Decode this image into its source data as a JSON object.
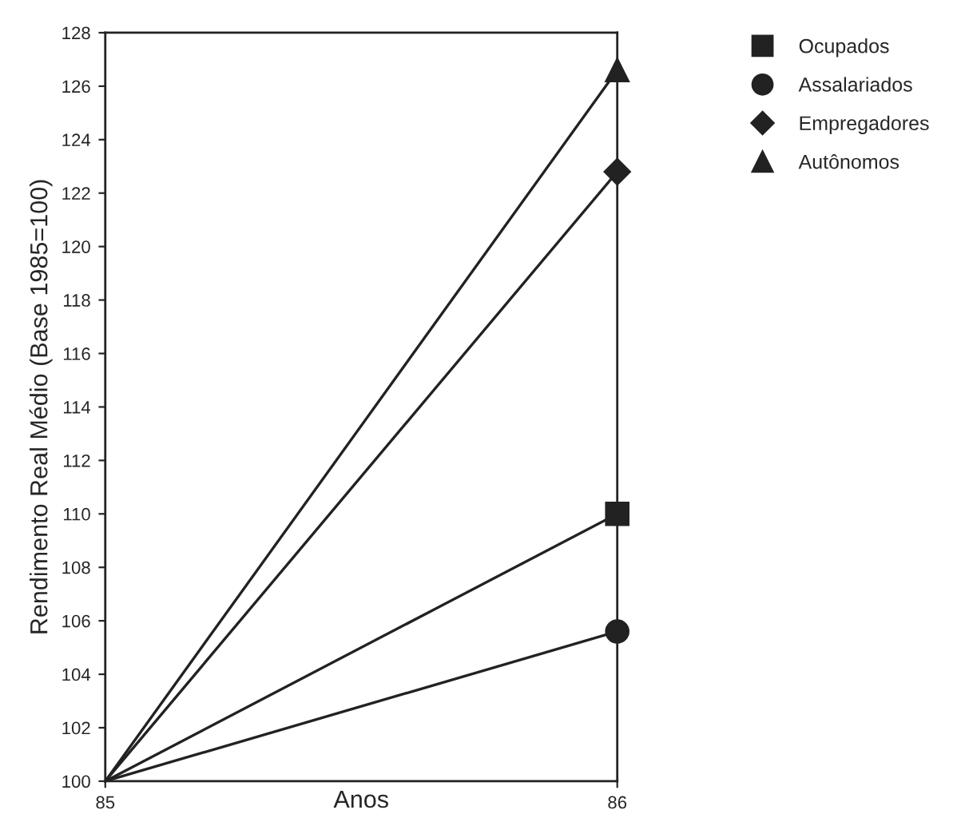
{
  "chart_data": {
    "type": "line",
    "xlabel": "Anos",
    "ylabel": "Rendimento Real Médio (Base 1985=100)",
    "x": [
      85,
      86
    ],
    "xlim": [
      85,
      86
    ],
    "xticks": [
      85,
      86
    ],
    "ylim": [
      100,
      128
    ],
    "yticks": [
      100,
      102,
      104,
      106,
      108,
      110,
      112,
      114,
      116,
      118,
      120,
      122,
      124,
      126,
      128
    ],
    "grid": false,
    "legend": "top right",
    "series": [
      {
        "name": "Ocupados",
        "color": "#222222",
        "marker": "square",
        "values": [
          100,
          110.0
        ]
      },
      {
        "name": "Assalariados",
        "color": "#222222",
        "marker": "circle",
        "values": [
          100,
          105.6
        ]
      },
      {
        "name": "Empregadores",
        "color": "#222222",
        "marker": "diamond",
        "values": [
          100,
          122.8
        ]
      },
      {
        "name": "Autônomos",
        "color": "#222222",
        "marker": "triangle",
        "values": [
          100,
          126.6
        ]
      }
    ]
  }
}
